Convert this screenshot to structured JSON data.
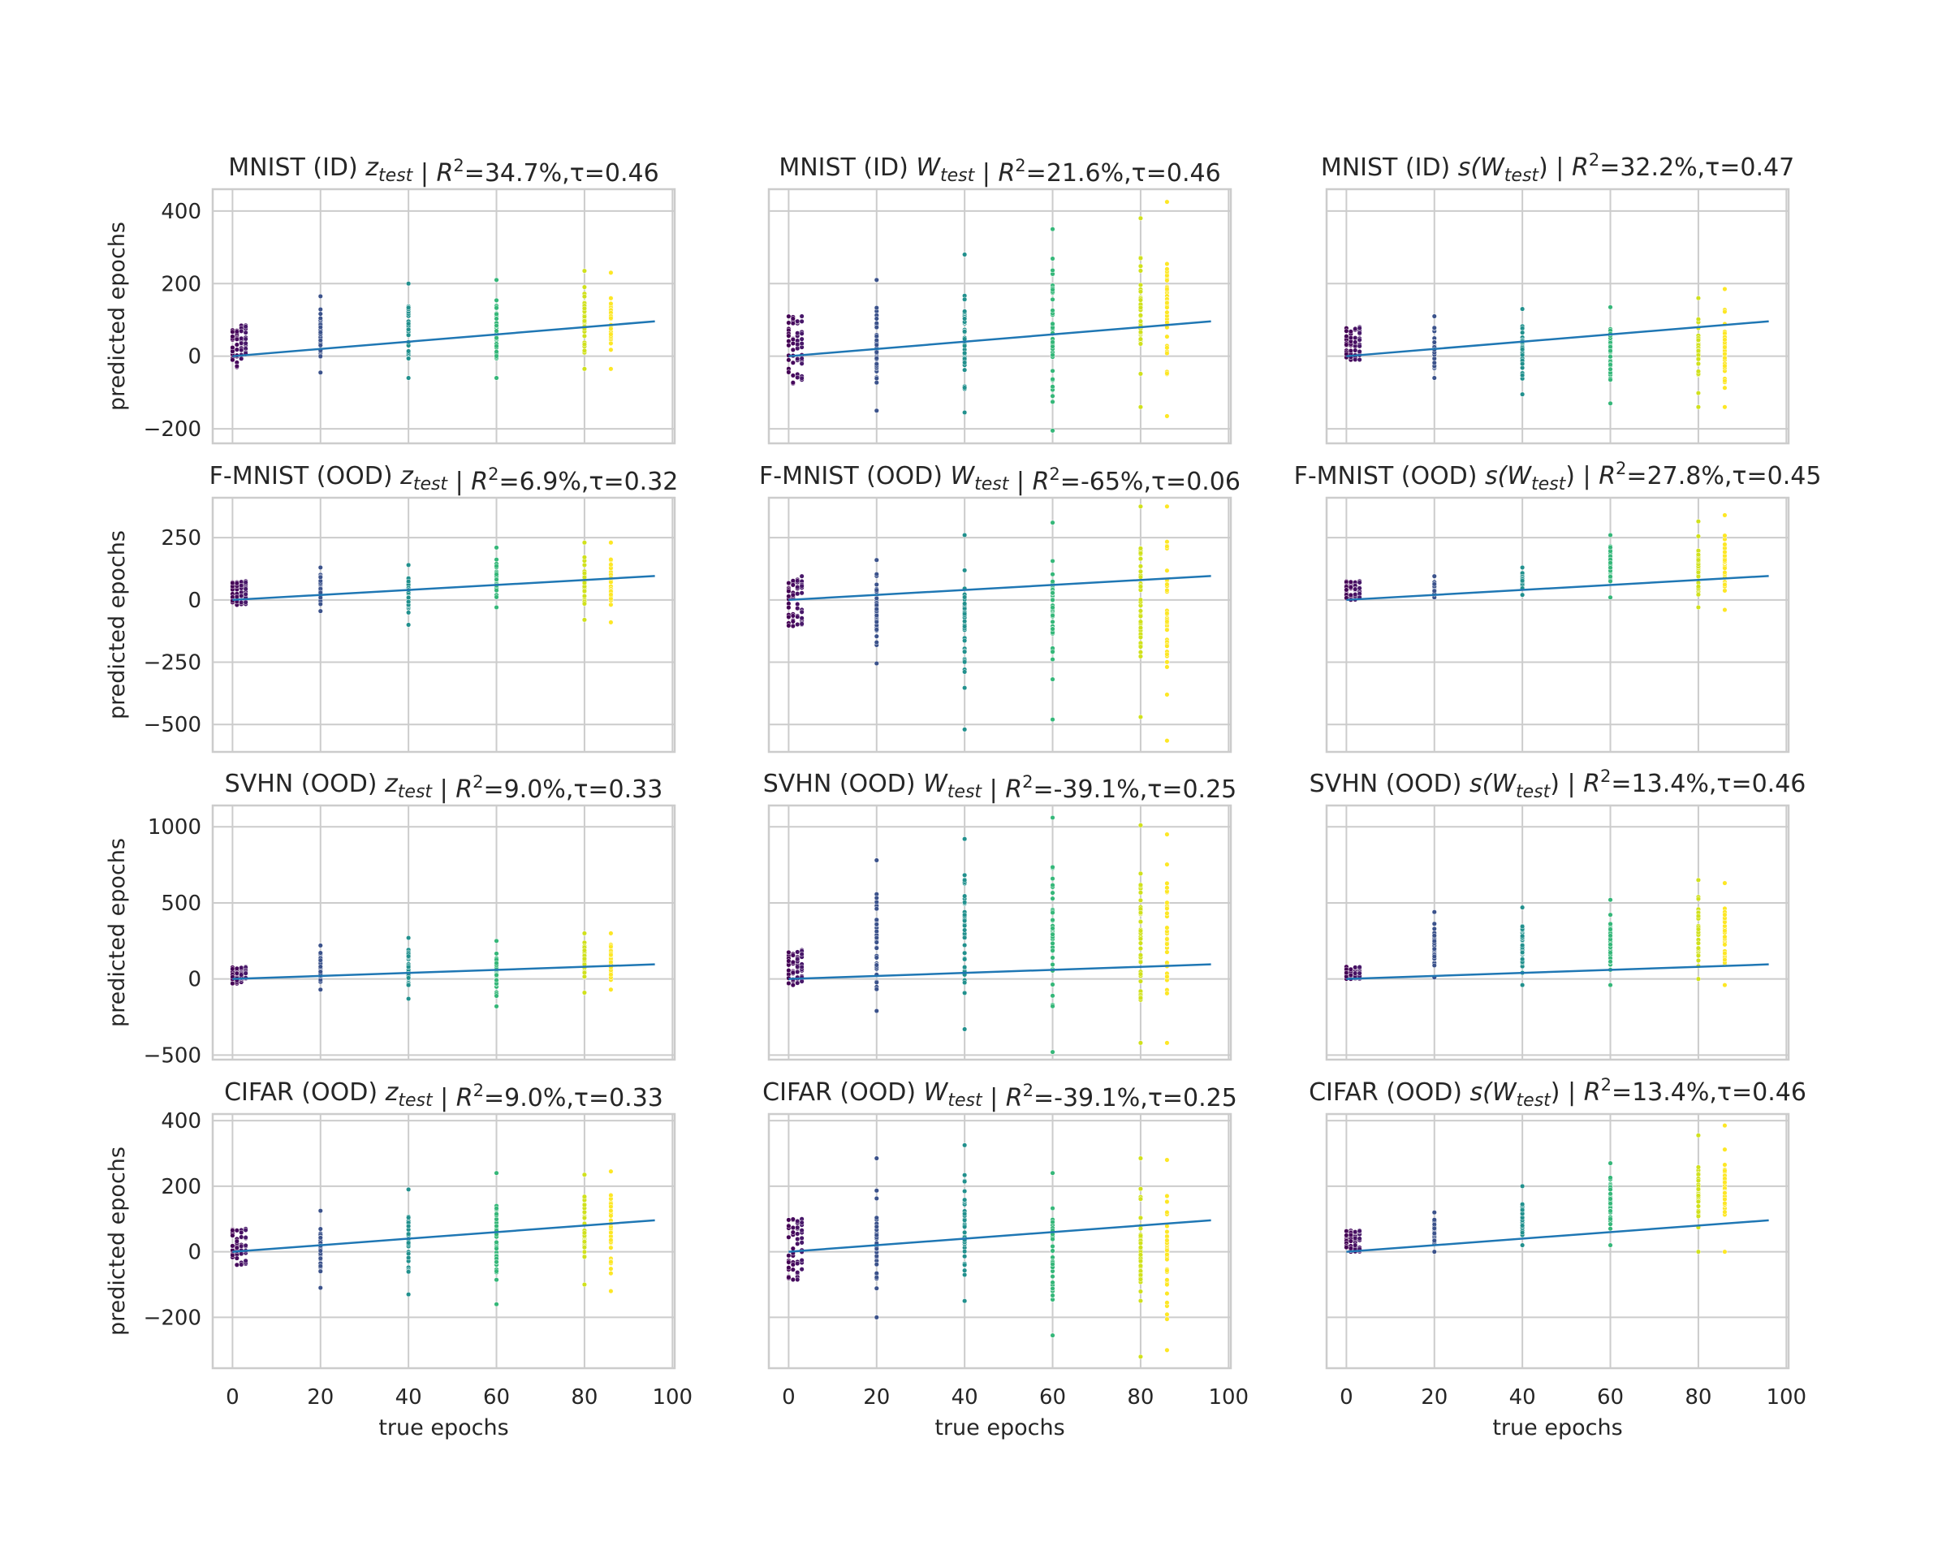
{
  "chart_data": {
    "type": "scatter",
    "layout": "4 rows x 3 columns",
    "xlabel": "true epochs",
    "ylabel": "predicted epochs",
    "xlim": [
      -4.5,
      100.5
    ],
    "xticks": [
      0,
      20,
      40,
      60,
      80,
      100
    ],
    "grid": true,
    "fit_line": {
      "color": "#1f77b4",
      "x": [
        0,
        96
      ],
      "y": [
        0,
        96
      ]
    },
    "cluster_colors": {
      "0": "#440154",
      "1": "#46085c",
      "2": "#471063",
      "3": "#48186a",
      "20": "#3b528b",
      "40": "#21908d",
      "60": "#35b779",
      "80": "#d0e11c",
      "86": "#fde725"
    },
    "rows": [
      {
        "ylim": [
          -240,
          460
        ],
        "yticks": [
          -200,
          0,
          200,
          400
        ]
      },
      {
        "ylim": [
          -610,
          410
        ],
        "yticks": [
          -500,
          -250,
          0,
          250
        ]
      },
      {
        "ylim": [
          -530,
          1140
        ],
        "yticks": [
          -500,
          0,
          500,
          1000
        ]
      },
      {
        "ylim": [
          -355,
          420
        ],
        "yticks": [
          -200,
          0,
          200,
          400
        ]
      }
    ],
    "panels": [
      {
        "dataset": "MNIST (ID) ",
        "var": "z",
        "sub": "test",
        "suffix": "",
        "r2": "34.7%",
        "tau": "0.46",
        "clusters": [
          [
            0,
            -30,
            85
          ],
          [
            20,
            -45,
            165
          ],
          [
            40,
            -60,
            200
          ],
          [
            60,
            -60,
            210
          ],
          [
            80,
            -35,
            235
          ],
          [
            86,
            -35,
            230
          ]
        ]
      },
      {
        "dataset": "MNIST (ID)",
        "var": "W",
        "sub": "test",
        "suffix": "",
        "r2": "21.6%",
        "tau": "0.46",
        "clusters": [
          [
            0,
            -75,
            110
          ],
          [
            20,
            -150,
            210
          ],
          [
            40,
            -155,
            280
          ],
          [
            60,
            -205,
            350
          ],
          [
            80,
            -140,
            380
          ],
          [
            86,
            -165,
            425
          ]
        ]
      },
      {
        "dataset": "MNIST (ID) ",
        "var": "s(W",
        "sub": "test",
        "suffix": ")",
        "r2": "32.2%",
        "tau": "0.47",
        "clusters": [
          [
            0,
            -10,
            80
          ],
          [
            20,
            -60,
            110
          ],
          [
            40,
            -105,
            130
          ],
          [
            60,
            -130,
            135
          ],
          [
            80,
            -140,
            160
          ],
          [
            86,
            -140,
            185
          ]
        ]
      },
      {
        "dataset": "F-MNIST (OOD)",
        "var": "z",
        "sub": "test",
        "suffix": "",
        "r2": "6.9%",
        "tau": "0.32",
        "clusters": [
          [
            0,
            -20,
            75
          ],
          [
            20,
            -45,
            130
          ],
          [
            40,
            -100,
            140
          ],
          [
            60,
            -30,
            210
          ],
          [
            80,
            -80,
            230
          ],
          [
            86,
            -90,
            230
          ]
        ]
      },
      {
        "dataset": "F-MNIST (OOD)",
        "var": "W",
        "sub": "test",
        "suffix": "",
        "r2": "-65%",
        "tau": "0.06",
        "clusters": [
          [
            0,
            -105,
            95
          ],
          [
            20,
            -255,
            160
          ],
          [
            40,
            -520,
            260
          ],
          [
            60,
            -480,
            310
          ],
          [
            80,
            -470,
            375
          ],
          [
            86,
            -565,
            375
          ]
        ]
      },
      {
        "dataset": "F-MNIST (OOD)",
        "var": "s(W",
        "sub": "test",
        "suffix": ")",
        "r2": "27.8%",
        "tau": "0.45",
        "clusters": [
          [
            0,
            0,
            75
          ],
          [
            20,
            10,
            95
          ],
          [
            40,
            20,
            130
          ],
          [
            60,
            10,
            260
          ],
          [
            80,
            -30,
            315
          ],
          [
            86,
            -40,
            340
          ]
        ]
      },
      {
        "dataset": "SVHN (OOD)",
        "var": "z",
        "sub": "test",
        "suffix": "",
        "r2": "9.0%",
        "tau": "0.33",
        "clusters": [
          [
            0,
            -30,
            80
          ],
          [
            20,
            -70,
            220
          ],
          [
            40,
            -130,
            270
          ],
          [
            60,
            -180,
            250
          ],
          [
            80,
            -90,
            300
          ],
          [
            86,
            -70,
            300
          ]
        ]
      },
      {
        "dataset": "SVHN (OOD)",
        "var": "W",
        "sub": "test",
        "suffix": "",
        "r2": "-39.1%",
        "tau": "0.25",
        "clusters": [
          [
            0,
            -40,
            190
          ],
          [
            20,
            -210,
            780
          ],
          [
            40,
            -330,
            920
          ],
          [
            60,
            -480,
            1060
          ],
          [
            80,
            -420,
            1010
          ],
          [
            86,
            -420,
            950
          ]
        ]
      },
      {
        "dataset": "SVHN (OOD)",
        "var": "s(W",
        "sub": "test",
        "suffix": ")",
        "r2": "13.4%",
        "tau": "0.46",
        "clusters": [
          [
            0,
            0,
            80
          ],
          [
            20,
            10,
            440
          ],
          [
            40,
            -40,
            470
          ],
          [
            60,
            -40,
            520
          ],
          [
            80,
            0,
            650
          ],
          [
            86,
            -40,
            630
          ]
        ]
      },
      {
        "dataset": "CIFAR (OOD)",
        "var": "z",
        "sub": "test",
        "suffix": "",
        "r2": "9.0%",
        "tau": "0.33",
        "clusters": [
          [
            0,
            -40,
            70
          ],
          [
            20,
            -110,
            125
          ],
          [
            40,
            -130,
            190
          ],
          [
            60,
            -160,
            240
          ],
          [
            80,
            -100,
            235
          ],
          [
            86,
            -120,
            245
          ]
        ]
      },
      {
        "dataset": "CIFAR (OOD)",
        "var": "W",
        "sub": "test",
        "suffix": "",
        "r2": "-39.1%",
        "tau": "0.25",
        "clusters": [
          [
            0,
            -85,
            100
          ],
          [
            20,
            -200,
            285
          ],
          [
            40,
            -150,
            325
          ],
          [
            60,
            -255,
            240
          ],
          [
            80,
            -320,
            285
          ],
          [
            86,
            -300,
            280
          ]
        ]
      },
      {
        "dataset": "CIFAR (OOD)",
        "var": "s(W",
        "sub": "test",
        "suffix": ")",
        "r2": "13.4%",
        "tau": "0.46",
        "clusters": [
          [
            0,
            0,
            65
          ],
          [
            20,
            0,
            120
          ],
          [
            40,
            20,
            200
          ],
          [
            60,
            20,
            270
          ],
          [
            80,
            0,
            355
          ],
          [
            86,
            0,
            385
          ]
        ]
      }
    ]
  }
}
